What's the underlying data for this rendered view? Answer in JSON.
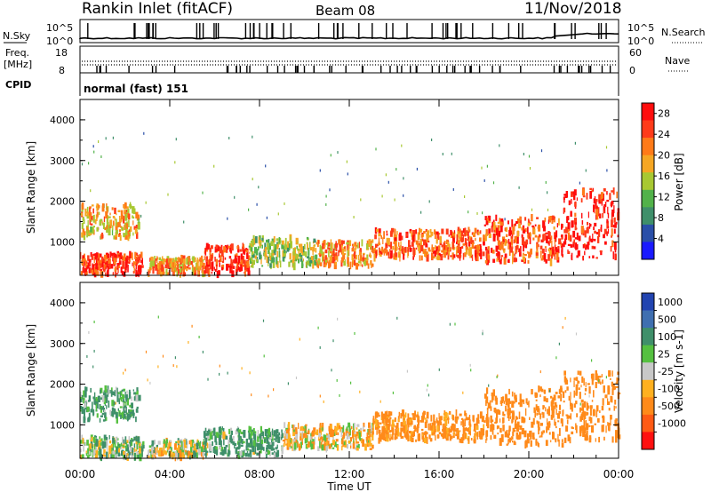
{
  "header": {
    "station": "Rankin Inlet (fitACF)",
    "beam": "Beam 08",
    "date": "11/Nov/2018"
  },
  "noise_panel": {
    "left_label": "N.Sky",
    "right_label": "N.Search",
    "left_ticks": [
      "10^5",
      "10^0"
    ],
    "right_ticks": [
      "10^5",
      "10^0"
    ]
  },
  "freq_panel": {
    "left_label": "Freq.",
    "left_unit": "[MHz]",
    "left_ticks": [
      "18",
      "8"
    ],
    "right_label": "Nave",
    "right_ticks": [
      "60",
      "0"
    ]
  },
  "cpid_panel": {
    "label": "CPID",
    "value": "normal (fast) 151"
  },
  "colors": {
    "power_scale": [
      "#1a1aff",
      "#2a4fa8",
      "#3f8f6a",
      "#52b24a",
      "#a8c832",
      "#f5a623",
      "#ff7a18",
      "#ff3b1a",
      "#ff0d0d"
    ],
    "velocity_scale": [
      "#2244b0",
      "#3f6fb0",
      "#3f8f6a",
      "#55c040",
      "#c8c8c8",
      "#ffb020",
      "#ff8a1a",
      "#ff5a14",
      "#ff1010"
    ]
  },
  "chart_data": [
    {
      "type": "heatmap",
      "name": "power",
      "xlabel": "Time UT",
      "ylabel": "Slant Range [km]",
      "xlim": [
        "00:00",
        "24:00"
      ],
      "ylim": [
        180,
        4500
      ],
      "y_ticks": [
        1000,
        2000,
        3000,
        4000
      ],
      "colorbar": {
        "label": "Power [dB]",
        "ticks": [
          "4",
          "8",
          "12",
          "16",
          "20",
          "24",
          "28"
        ],
        "range": [
          0,
          30
        ]
      },
      "echo_regions": [
        {
          "t0": 0.0,
          "t1": 2.8,
          "r0": 200,
          "r1": 700,
          "value": 26
        },
        {
          "t0": 0.0,
          "t1": 2.6,
          "r0": 1100,
          "r1": 1900,
          "value": 19
        },
        {
          "t0": 3.0,
          "t1": 5.5,
          "r0": 200,
          "r1": 600,
          "value": 20
        },
        {
          "t0": 5.5,
          "t1": 7.5,
          "r0": 200,
          "r1": 900,
          "value": 27
        },
        {
          "t0": 7.5,
          "t1": 10.5,
          "r0": 400,
          "r1": 1100,
          "value": 14
        },
        {
          "t0": 10.5,
          "t1": 13.0,
          "r0": 400,
          "r1": 1000,
          "value": 20
        },
        {
          "t0": 13.0,
          "t1": 18.0,
          "r0": 600,
          "r1": 1300,
          "value": 23
        },
        {
          "t0": 18.0,
          "t1": 21.5,
          "r0": 500,
          "r1": 1600,
          "value": 25
        },
        {
          "t0": 21.5,
          "t1": 24.0,
          "r0": 600,
          "r1": 2300,
          "value": 28
        }
      ]
    },
    {
      "type": "heatmap",
      "name": "velocity",
      "xlabel": "Time UT",
      "ylabel": "Slant Range [km]",
      "xlim": [
        "00:00",
        "24:00"
      ],
      "ylim": [
        180,
        4500
      ],
      "y_ticks": [
        1000,
        2000,
        3000,
        4000
      ],
      "x_ticks": [
        "00:00",
        "04:00",
        "08:00",
        "12:00",
        "16:00",
        "20:00",
        "00:00"
      ],
      "colorbar": {
        "label": "Velocity [m s-1]",
        "ticks": [
          "1000",
          "500",
          "100",
          "25",
          "-25",
          "-100",
          "-500",
          "-1000"
        ]
      },
      "echo_regions": [
        {
          "t0": 0.0,
          "t1": 2.8,
          "r0": 200,
          "r1": 700,
          "value": 60
        },
        {
          "t0": 0.0,
          "t1": 2.6,
          "r0": 1100,
          "r1": 1900,
          "value": 150
        },
        {
          "t0": 3.0,
          "t1": 5.5,
          "r0": 200,
          "r1": 600,
          "value": 0
        },
        {
          "t0": 5.5,
          "t1": 9.0,
          "r0": 250,
          "r1": 900,
          "value": 120
        },
        {
          "t0": 9.0,
          "t1": 13.0,
          "r0": 400,
          "r1": 1000,
          "value": -80
        },
        {
          "t0": 13.0,
          "t1": 18.0,
          "r0": 600,
          "r1": 1300,
          "value": -200
        },
        {
          "t0": 18.0,
          "t1": 21.5,
          "r0": 500,
          "r1": 1900,
          "value": -300
        },
        {
          "t0": 21.5,
          "t1": 24.0,
          "r0": 600,
          "r1": 2300,
          "value": -250
        }
      ]
    }
  ]
}
